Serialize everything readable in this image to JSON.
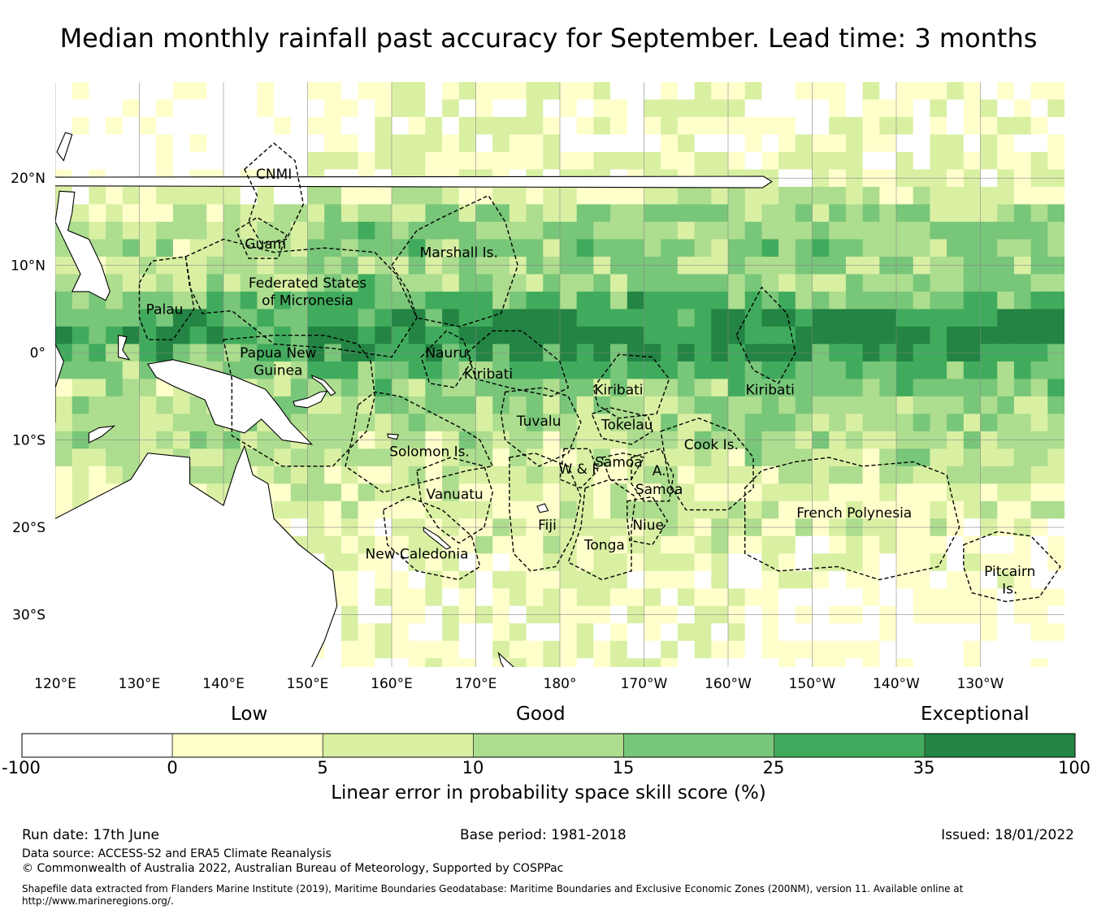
{
  "title": "Median monthly rainfall past accuracy for September. Lead time: 3 months",
  "map": {
    "lon_labels": [
      "120°E",
      "130°E",
      "140°E",
      "150°E",
      "160°E",
      "170°E",
      "180°",
      "170°W",
      "160°W",
      "150°W",
      "140°W",
      "130°W"
    ],
    "lat_labels": [
      "20°N",
      "10°N",
      "0°",
      "10°S",
      "20°S",
      "30°S"
    ],
    "lon_range": [
      120,
      240
    ],
    "lat_range": [
      -36,
      31
    ],
    "countries": [
      {
        "name": "CNMI",
        "lon": 146,
        "lat": 20.5
      },
      {
        "name": "Guam",
        "lon": 145,
        "lat": 12.5
      },
      {
        "name": "Marshall Is.",
        "lon": 168,
        "lat": 11.5
      },
      {
        "name": "Federated States",
        "lon": 150,
        "lat": 8
      },
      {
        "name": "of Micronesia",
        "lon": 150,
        "lat": 6
      },
      {
        "name": "Palau",
        "lon": 133,
        "lat": 5
      },
      {
        "name": "Papua New",
        "lon": 146.5,
        "lat": 0
      },
      {
        "name": "Guinea",
        "lon": 146.5,
        "lat": -2
      },
      {
        "name": "Nauru",
        "lon": 166.5,
        "lat": 0
      },
      {
        "name": "Kiribati",
        "lon": 171.5,
        "lat": -2.4
      },
      {
        "name": "Kiribati",
        "lon": 187,
        "lat": -4.2
      },
      {
        "name": "Kiribati",
        "lon": 205,
        "lat": -4.2
      },
      {
        "name": "Tuvalu",
        "lon": 177.5,
        "lat": -7.8
      },
      {
        "name": "Tokelau",
        "lon": 188,
        "lat": -8.2
      },
      {
        "name": "Cook Is.",
        "lon": 198,
        "lat": -10.5
      },
      {
        "name": "Solomon Is.",
        "lon": 164.5,
        "lat": -11.3
      },
      {
        "name": "Samoa",
        "lon": 187,
        "lat": -12.5
      },
      {
        "name": "W & F",
        "lon": 182.3,
        "lat": -13.3
      },
      {
        "name": "A.",
        "lon": 191.8,
        "lat": -13.5
      },
      {
        "name": "Samoa",
        "lon": 191.8,
        "lat": -15.6
      },
      {
        "name": "Vanuatu",
        "lon": 167.5,
        "lat": -16.2
      },
      {
        "name": "Fiji",
        "lon": 178.5,
        "lat": -19.7
      },
      {
        "name": "Niue",
        "lon": 190.5,
        "lat": -19.7
      },
      {
        "name": "Tonga",
        "lon": 185.3,
        "lat": -22
      },
      {
        "name": "French Polynesia",
        "lon": 215,
        "lat": -18.3
      },
      {
        "name": "New Caledonia",
        "lon": 163,
        "lat": -23
      },
      {
        "name": "Pitcairn",
        "lon": 233.5,
        "lat": -25
      },
      {
        "name": "Is.",
        "lon": 233.5,
        "lat": -27
      }
    ]
  },
  "colorbar": {
    "categories": [
      "Low",
      "Good",
      "Exceptional"
    ],
    "ticks": [
      "-100",
      "0",
      "5",
      "10",
      "15",
      "25",
      "35",
      "100"
    ],
    "colors": [
      "#ffffff",
      "#ffffcc",
      "#d9f0a3",
      "#addd8e",
      "#78c679",
      "#41ab5d",
      "#238443"
    ],
    "label": "Linear error in probability space skill score (%)"
  },
  "footer": {
    "run_date": "Run date: 17th June",
    "base_period": "Base period: 1981-2018",
    "issued": "Issued: 18/01/2022",
    "data_source": "Data source: ACCESS-S2 and ERA5 Climate Reanalysis",
    "copyright": "© Commonwealth of Australia 2022, Australian Bureau of Meteorology, Supported by COSPPac",
    "shapefile": "Shapefile data extracted from Flanders Marine Institute (2019), Maritime Boundaries Geodatabase: Maritime Boundaries and Exclusive Economic Zones (200NM), version 11. Available online at http://www.marineregions.org/."
  }
}
